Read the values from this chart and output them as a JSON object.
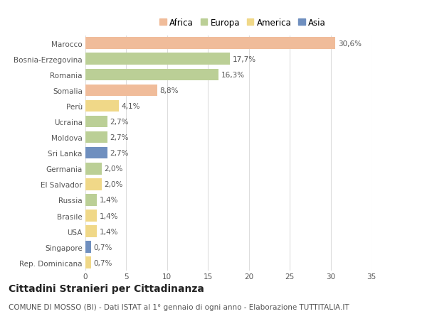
{
  "countries": [
    "Marocco",
    "Bosnia-Erzegovina",
    "Romania",
    "Somalia",
    "Perù",
    "Ucraina",
    "Moldova",
    "Sri Lanka",
    "Germania",
    "El Salvador",
    "Russia",
    "Brasile",
    "USA",
    "Singapore",
    "Rep. Dominicana"
  ],
  "values": [
    30.6,
    17.7,
    16.3,
    8.8,
    4.1,
    2.7,
    2.7,
    2.7,
    2.0,
    2.0,
    1.4,
    1.4,
    1.4,
    0.7,
    0.7
  ],
  "labels": [
    "30,6%",
    "17,7%",
    "16,3%",
    "8,8%",
    "4,1%",
    "2,7%",
    "2,7%",
    "2,7%",
    "2,0%",
    "2,0%",
    "1,4%",
    "1,4%",
    "1,4%",
    "0,7%",
    "0,7%"
  ],
  "continents": [
    "Africa",
    "Europa",
    "Europa",
    "Africa",
    "America",
    "Europa",
    "Europa",
    "Asia",
    "Europa",
    "America",
    "Europa",
    "America",
    "America",
    "Asia",
    "America"
  ],
  "continent_colors": {
    "Africa": "#F0BC9A",
    "Europa": "#BBCF96",
    "America": "#F0D888",
    "Asia": "#6F8FBF"
  },
  "legend_order": [
    "Africa",
    "Europa",
    "America",
    "Asia"
  ],
  "title": "Cittadini Stranieri per Cittadinanza",
  "subtitle": "COMUNE DI MOSSO (BI) - Dati ISTAT al 1° gennaio di ogni anno - Elaborazione TUTTITALIA.IT",
  "xlim": [
    0,
    35
  ],
  "xticks": [
    0,
    5,
    10,
    15,
    20,
    25,
    30,
    35
  ],
  "background_color": "#ffffff",
  "grid_color": "#dddddd",
  "bar_height": 0.75,
  "label_fontsize": 7.5,
  "tick_fontsize": 7.5,
  "title_fontsize": 10,
  "subtitle_fontsize": 7.5
}
